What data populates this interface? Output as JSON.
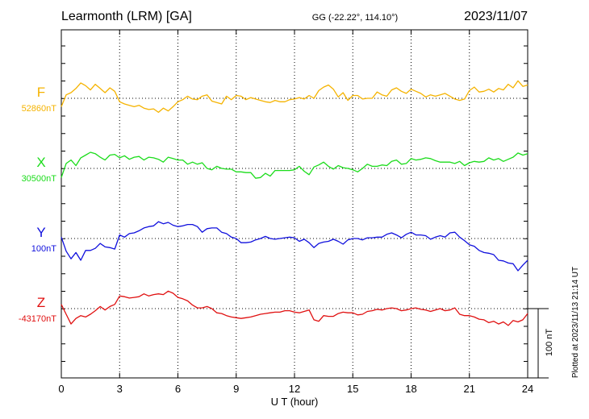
{
  "header": {
    "station": "Learmonth (LRM)  [GA]",
    "coords": "GG (-22.22°, 114.10°)",
    "date": "2023/11/07"
  },
  "chart_data": {
    "type": "line",
    "xlabel": "U T (hour)",
    "xlim": [
      0,
      24
    ],
    "xticks": [
      "0",
      "3",
      "6",
      "9",
      "12",
      "15",
      "18",
      "21",
      "24"
    ],
    "grid": true,
    "scale_bar": "100 nT",
    "plotted_note": "Plotted at 2023/11/13 21:14 UT",
    "series": [
      {
        "name": "F",
        "baseline_label": "52860nT",
        "color": "#f5b300",
        "x": [
          0,
          0.25,
          0.5,
          0.75,
          1,
          1.25,
          1.5,
          1.75,
          2,
          2.25,
          2.5,
          2.75,
          3,
          3.25,
          3.5,
          3.75,
          4,
          4.25,
          4.5,
          4.75,
          5,
          5.25,
          5.5,
          5.75,
          6,
          6.25,
          6.5,
          6.75,
          7,
          7.25,
          7.5,
          7.75,
          8,
          8.25,
          8.5,
          8.75,
          9,
          9.25,
          9.5,
          9.75,
          10,
          10.25,
          10.5,
          10.75,
          11,
          11.25,
          11.5,
          11.75,
          12,
          12.25,
          12.5,
          12.75,
          13,
          13.25,
          13.5,
          13.75,
          14,
          14.25,
          14.5,
          14.75,
          15,
          15.25,
          15.5,
          15.75,
          16,
          16.25,
          16.5,
          16.75,
          17,
          17.25,
          17.5,
          17.75,
          18,
          18.25,
          18.5,
          18.75,
          19,
          19.25,
          19.5,
          19.75,
          20,
          20.25,
          20.5,
          20.75,
          21,
          21.25,
          21.5,
          21.75,
          22,
          22.25,
          22.5,
          22.75,
          23,
          23.25,
          23.5,
          23.75,
          24
        ],
        "y": [
          -12,
          5,
          8,
          14,
          22,
          18,
          12,
          20,
          14,
          8,
          15,
          10,
          -5,
          -8,
          -10,
          -12,
          -10,
          -14,
          -16,
          -15,
          -20,
          -14,
          -18,
          -12,
          -5,
          -2,
          3,
          -1,
          -2,
          3,
          5,
          -4,
          -6,
          -8,
          3,
          -2,
          4,
          3,
          -2,
          1,
          -1,
          -3,
          -5,
          -6,
          -3,
          -5,
          -5,
          -2,
          -1,
          1,
          -1,
          4,
          0,
          11,
          16,
          19,
          13,
          2,
          8,
          -3,
          4,
          4,
          -1,
          0,
          0,
          9,
          5,
          3,
          12,
          15,
          10,
          7,
          13,
          10,
          7,
          2,
          5,
          3,
          5,
          7,
          3,
          -1,
          -3,
          -1,
          11,
          16,
          9,
          10,
          13,
          9,
          14,
          12,
          20,
          15,
          25,
          17,
          19
        ]
      },
      {
        "name": "X",
        "baseline_label": "30500nT",
        "color": "#1bdc1b",
        "x": [
          0,
          0.25,
          0.5,
          0.75,
          1,
          1.25,
          1.5,
          1.75,
          2,
          2.25,
          2.5,
          2.75,
          3,
          3.25,
          3.5,
          3.75,
          4,
          4.25,
          4.5,
          4.75,
          5,
          5.25,
          5.5,
          5.75,
          6,
          6.25,
          6.5,
          6.75,
          7,
          7.25,
          7.5,
          7.75,
          8,
          8.25,
          8.5,
          8.75,
          9,
          9.25,
          9.5,
          9.75,
          10,
          10.25,
          10.5,
          10.75,
          11,
          11.25,
          11.5,
          11.75,
          12,
          12.25,
          12.5,
          12.75,
          13,
          13.25,
          13.5,
          13.75,
          14,
          14.25,
          14.5,
          14.75,
          15,
          15.25,
          15.5,
          15.75,
          16,
          16.25,
          16.5,
          16.75,
          17,
          17.25,
          17.5,
          17.75,
          18,
          18.25,
          18.5,
          18.75,
          19,
          19.25,
          19.5,
          19.75,
          20,
          20.25,
          20.5,
          20.75,
          21,
          21.25,
          21.5,
          21.75,
          22,
          22.25,
          22.5,
          22.75,
          23,
          23.25,
          23.5,
          23.75,
          24
        ],
        "y": [
          -13,
          7,
          12,
          4,
          15,
          19,
          23,
          21,
          16,
          12,
          19,
          20,
          15,
          18,
          13,
          16,
          17,
          12,
          16,
          15,
          13,
          9,
          16,
          14,
          12,
          12,
          6,
          9,
          6,
          8,
          0,
          -2,
          3,
          0,
          -1,
          -1,
          -5,
          -5,
          -6,
          -6,
          -14,
          -13,
          -7,
          -11,
          -3,
          -3,
          -3,
          -3,
          -2,
          3,
          -4,
          -9,
          2,
          5,
          9,
          3,
          -1,
          4,
          1,
          0,
          -2,
          -5,
          0,
          6,
          3,
          3,
          5,
          4,
          10,
          12,
          6,
          7,
          14,
          12,
          13,
          15,
          14,
          11,
          9,
          9,
          9,
          7,
          10,
          4,
          8,
          10,
          9,
          10,
          15,
          12,
          14,
          10,
          13,
          16,
          22,
          19,
          21
        ]
      },
      {
        "name": "Y",
        "baseline_label": "100nT",
        "color": "#1010dd",
        "x": [
          0,
          0.25,
          0.5,
          0.75,
          1,
          1.25,
          1.5,
          1.75,
          2,
          2.25,
          2.5,
          2.75,
          3,
          3.25,
          3.5,
          3.75,
          4,
          4.25,
          4.5,
          4.75,
          5,
          5.25,
          5.5,
          5.75,
          6,
          6.25,
          6.5,
          6.75,
          7,
          7.25,
          7.5,
          7.75,
          8,
          8.25,
          8.5,
          8.75,
          9,
          9.25,
          9.5,
          9.75,
          10,
          10.25,
          10.5,
          10.75,
          11,
          11.25,
          11.5,
          11.75,
          12,
          12.25,
          12.5,
          12.75,
          13,
          13.25,
          13.5,
          13.75,
          14,
          14.25,
          14.5,
          14.75,
          15,
          15.25,
          15.5,
          15.75,
          16,
          16.25,
          16.5,
          16.75,
          17,
          17.25,
          17.5,
          17.75,
          18,
          18.25,
          18.5,
          18.75,
          19,
          19.25,
          19.5,
          19.75,
          20,
          20.25,
          20.5,
          20.75,
          21,
          21.25,
          21.5,
          21.75,
          22,
          22.25,
          22.5,
          22.75,
          23,
          23.25,
          23.5,
          23.75,
          24
        ],
        "y": [
          2,
          -18,
          -29,
          -20,
          -31,
          -17,
          -17,
          -14,
          -7,
          -12,
          -13,
          -15,
          5,
          2,
          7,
          8,
          11,
          15,
          17,
          18,
          24,
          21,
          23,
          19,
          17,
          18,
          20,
          20,
          17,
          9,
          14,
          15,
          15,
          9,
          7,
          2,
          0,
          -6,
          -6,
          -5,
          -2,
          0,
          3,
          0,
          -1,
          0,
          1,
          2,
          1,
          -4,
          -1,
          -6,
          -13,
          -7,
          -5,
          -4,
          -1,
          -4,
          -8,
          -2,
          0,
          0,
          -2,
          1,
          1,
          2,
          2,
          6,
          8,
          5,
          1,
          6,
          9,
          5,
          5,
          4,
          -1,
          2,
          4,
          2,
          8,
          9,
          2,
          -3,
          -9,
          -11,
          -17,
          -20,
          -21,
          -23,
          -31,
          -32,
          -35,
          -36,
          -46,
          -38,
          -31
        ]
      },
      {
        "name": "Z",
        "baseline_label": "-43170nT",
        "color": "#e01010",
        "x": [
          0,
          0.25,
          0.5,
          0.75,
          1,
          1.25,
          1.5,
          1.75,
          2,
          2.25,
          2.5,
          2.75,
          3,
          3.25,
          3.5,
          3.75,
          4,
          4.25,
          4.5,
          4.75,
          5,
          5.25,
          5.5,
          5.75,
          6,
          6.25,
          6.5,
          6.75,
          7,
          7.25,
          7.5,
          7.75,
          8,
          8.25,
          8.5,
          8.75,
          9,
          9.25,
          9.5,
          9.75,
          10,
          10.25,
          10.5,
          10.75,
          11,
          11.25,
          11.5,
          11.75,
          12,
          12.25,
          12.5,
          12.75,
          13,
          13.25,
          13.5,
          13.75,
          14,
          14.25,
          14.5,
          14.75,
          15,
          15.25,
          15.5,
          15.75,
          16,
          16.25,
          16.5,
          16.75,
          17,
          17.25,
          17.5,
          17.75,
          18,
          18.25,
          18.5,
          18.75,
          19,
          19.25,
          19.5,
          19.75,
          20,
          20.25,
          20.5,
          20.75,
          21,
          21.25,
          21.5,
          21.75,
          22,
          22.25,
          22.5,
          22.75,
          23,
          23.25,
          23.5,
          23.75,
          24
        ],
        "y": [
          6,
          -8,
          -22,
          -14,
          -10,
          -12,
          -8,
          -3,
          3,
          -2,
          3,
          6,
          18,
          17,
          15,
          16,
          17,
          21,
          18,
          20,
          21,
          20,
          25,
          22,
          16,
          14,
          11,
          5,
          1,
          1,
          3,
          0,
          -6,
          -7,
          -10,
          -12,
          -13,
          -14,
          -13,
          -12,
          -10,
          -8,
          -7,
          -6,
          -5,
          -5,
          -3,
          -3,
          -5,
          -6,
          -4,
          -2,
          -16,
          -18,
          -10,
          -11,
          -11,
          -7,
          -5,
          -6,
          -6,
          -9,
          -8,
          -4,
          -3,
          -1,
          -2,
          0,
          1,
          0,
          -3,
          -2,
          0,
          1,
          -1,
          -2,
          -4,
          -2,
          0,
          -3,
          -2,
          1,
          -8,
          -10,
          -10,
          -12,
          -15,
          -16,
          -20,
          -18,
          -22,
          -19,
          -24,
          -17,
          -19,
          -16,
          -7
        ]
      }
    ]
  }
}
